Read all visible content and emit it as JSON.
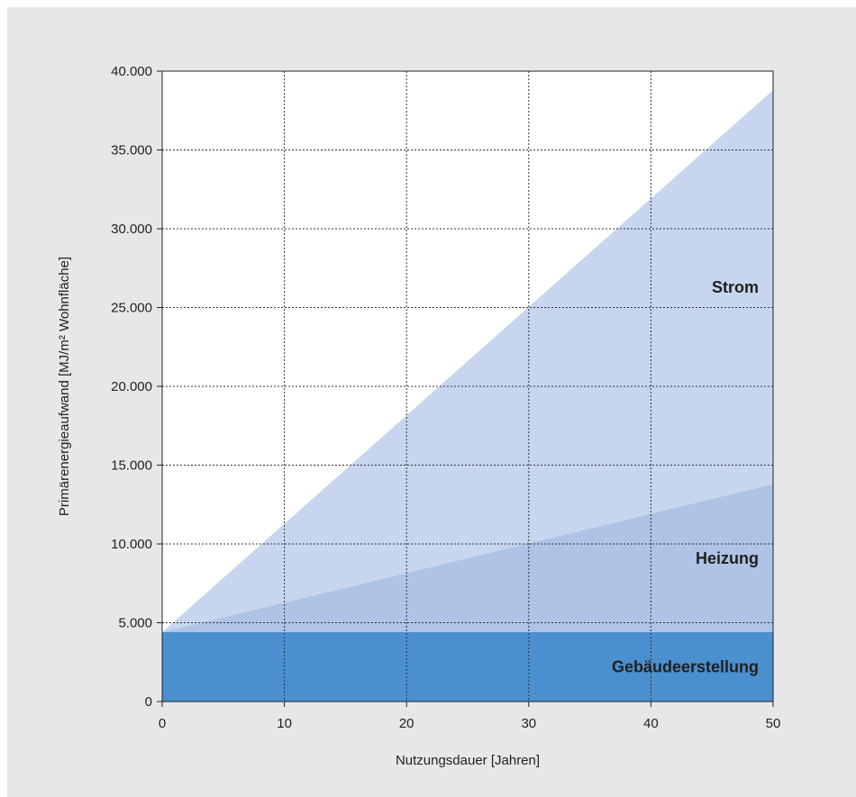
{
  "chart_data": {
    "type": "area",
    "stacked": true,
    "title": "",
    "xlabel": "Nutzungsdauer [Jahren]",
    "ylabel": "Primärenergieaufwand [MJ/m² Wohnfläche]",
    "xlim": [
      0,
      50
    ],
    "ylim": [
      0,
      40000
    ],
    "x_ticks": [
      0,
      10,
      20,
      30,
      40,
      50
    ],
    "x_tick_labels": [
      "0",
      "10",
      "20",
      "30",
      "40",
      "50"
    ],
    "y_ticks": [
      0,
      5000,
      10000,
      15000,
      20000,
      25000,
      30000,
      35000,
      40000
    ],
    "y_tick_labels": [
      "0",
      "5.000",
      "10.000",
      "15.000",
      "20.000",
      "25.000",
      "30.000",
      "35.000",
      "40.000"
    ],
    "grid": true,
    "grid_style": "dotted",
    "x": [
      0,
      50
    ],
    "series": [
      {
        "name": "Gebäudeerstellung",
        "values": [
          4400,
          4400
        ],
        "color": "#4a8fce"
      },
      {
        "name": "Heizung",
        "values": [
          0,
          9400
        ],
        "color": "#aec3e6"
      },
      {
        "name": "Strom",
        "values": [
          0,
          25000
        ],
        "color": "#c7d6ee"
      }
    ]
  }
}
